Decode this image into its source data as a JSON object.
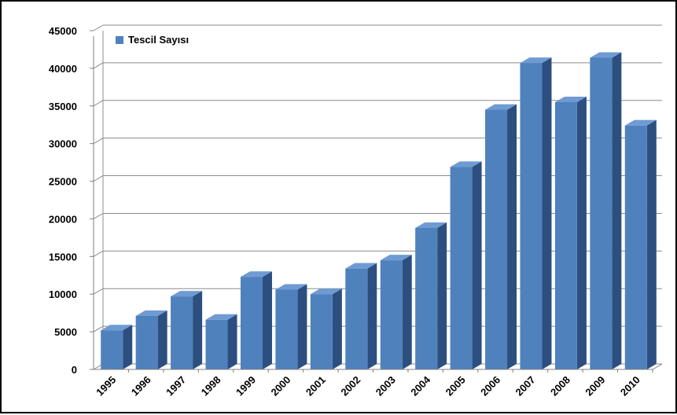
{
  "chart_data": {
    "type": "bar",
    "style": "3d-column",
    "categories": [
      "1995",
      "1996",
      "1997",
      "1998",
      "1999",
      "2000",
      "2001",
      "2002",
      "2003",
      "2004",
      "2005",
      "2006",
      "2007",
      "2008",
      "2009",
      "2010"
    ],
    "series": [
      {
        "name": "Tescil Sayısı",
        "color": "#4f81bd",
        "values": [
          5200,
          7100,
          9700,
          6600,
          12300,
          10600,
          10000,
          13400,
          14500,
          18800,
          26900,
          34500,
          40700,
          35500,
          41400,
          32400
        ]
      }
    ],
    "title": "",
    "xlabel": "",
    "ylabel": "",
    "ylim": [
      0,
      45000
    ],
    "yticks": [
      "0",
      "5000",
      "10000",
      "15000",
      "20000",
      "25000",
      "30000",
      "35000",
      "40000",
      "45000"
    ],
    "grid": true,
    "legend": "top-left"
  },
  "colors": {
    "bar_front": "#4f81bd",
    "bar_side": "#2c4f80",
    "bar_top": "#6f9bd3",
    "gridline": "#8c8c8c"
  }
}
